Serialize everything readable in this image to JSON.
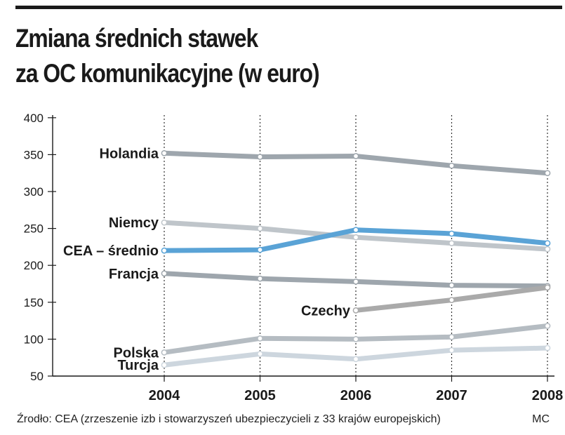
{
  "title_lines": [
    "Zmiana średnich stawek",
    "za OC komunikacyjne (w euro)"
  ],
  "source": "Źrodło: CEA (zrzeszenie izb i stowarzyszeń ubezpieczycieli z 33 krajów europejskich)",
  "credit": "MC",
  "chart_data": {
    "type": "line",
    "x": [
      "2004",
      "2005",
      "2006",
      "2007",
      "2008"
    ],
    "ylim": [
      50,
      400
    ],
    "yticks": [
      50,
      100,
      150,
      200,
      250,
      300,
      350,
      400
    ],
    "xlabel": "",
    "ylabel": "",
    "grid": "vertical dotted",
    "series": [
      {
        "name": "Holandia",
        "color": "#9ea6ad",
        "values": [
          352,
          347,
          348,
          335,
          325
        ]
      },
      {
        "name": "Niemcy",
        "color": "#bfc5ca",
        "values": [
          258,
          250,
          238,
          230,
          222
        ]
      },
      {
        "name": "CEA – średnio",
        "color": "#5aa3d6",
        "values": [
          220,
          221,
          248,
          243,
          230
        ]
      },
      {
        "name": "Francja",
        "color": "#9ea6ad",
        "values": [
          189,
          182,
          178,
          173,
          172
        ]
      },
      {
        "name": "Czechy",
        "color": "#aaaaaa",
        "values": [
          null,
          null,
          139,
          153,
          170
        ]
      },
      {
        "name": "Polska",
        "color": "#b5bcc2",
        "values": [
          82,
          101,
          100,
          103,
          118
        ]
      },
      {
        "name": "Turcja",
        "color": "#cdd6de",
        "values": [
          65,
          80,
          73,
          85,
          88
        ]
      }
    ]
  }
}
